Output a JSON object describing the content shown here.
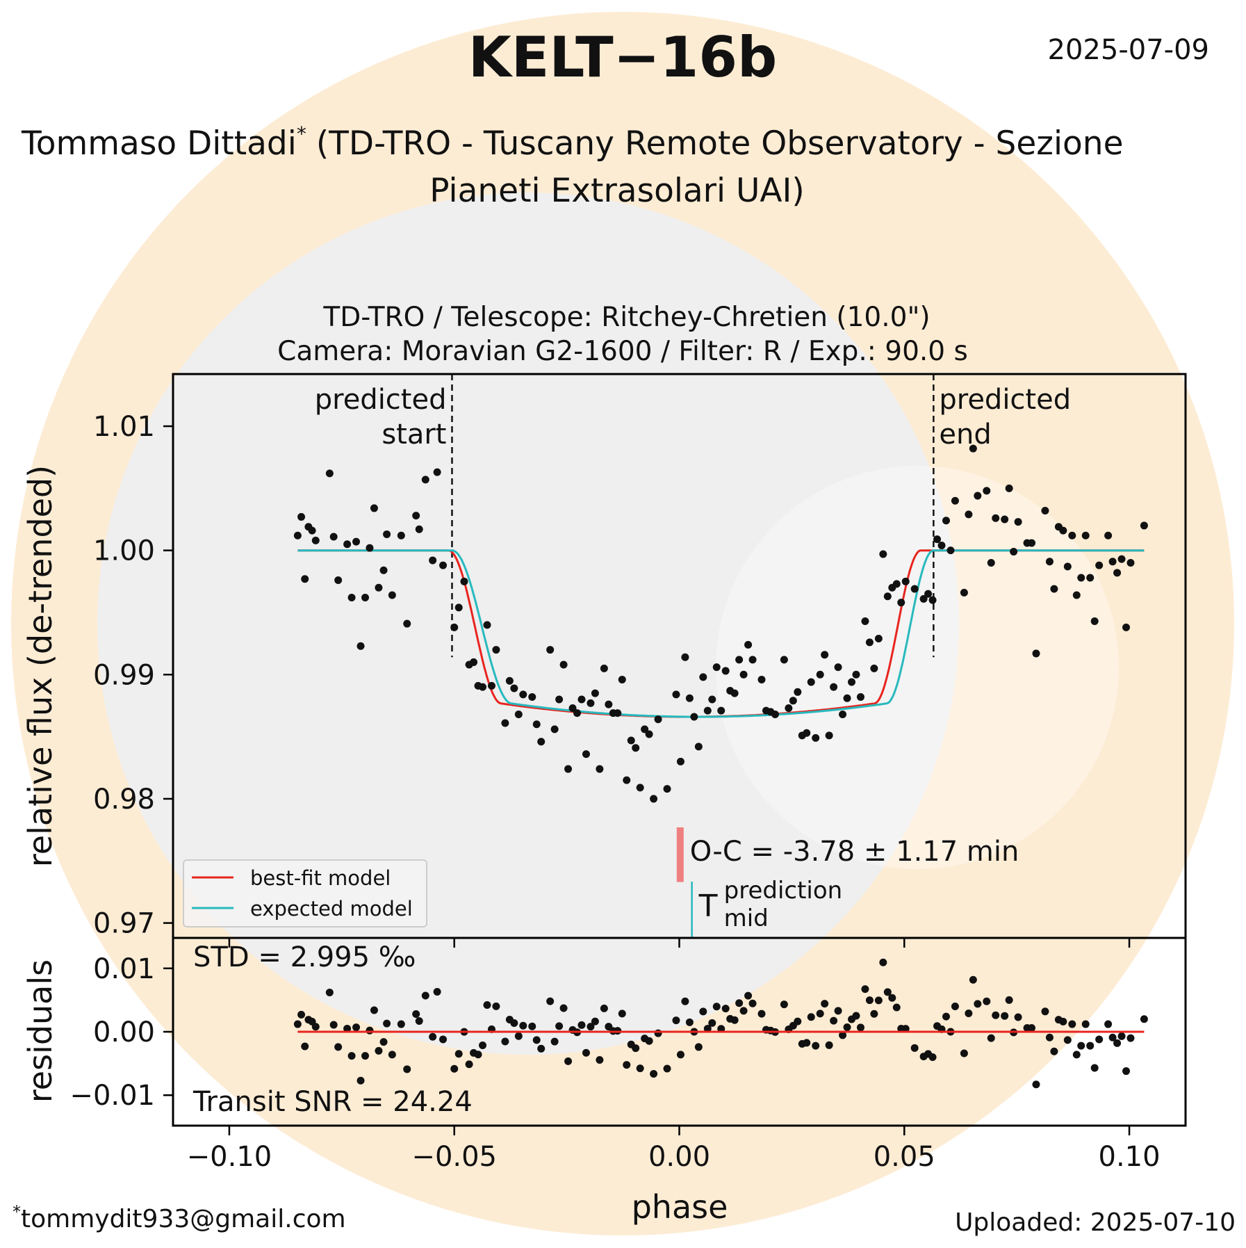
{
  "header": {
    "title": "KELT−16b",
    "date": "2025-07-09",
    "observer_line1": "Tommaso Dittadi",
    "observer_mark": "*",
    "observer_line1_rest": "(TD-TRO - Tuscany Remote Observatory - Sezione",
    "observer_line2": "Pianeti Extrasolari UAI)",
    "email_mark": "*",
    "email": "tommydit933@gmail.com",
    "uploaded": "Uploaded: 2025-07-10"
  },
  "chart_data": {
    "type": "scatter",
    "subtitle_line1": "TD-TRO / Telescope: Ritchey-Chretien (10.0\")",
    "subtitle_line2": "Camera: Moravian G2-1600 / Filter: R / Exp.: 90.0 s",
    "xlabel": "phase",
    "ylabel": "relative flux (de-trended)",
    "residuals_ylabel": "residuals",
    "xlim": [
      -0.1125,
      0.1125
    ],
    "ylim": [
      0.9688,
      1.0142
    ],
    "residuals_ylim": [
      -0.0148,
      0.0148
    ],
    "xticks": [
      -0.1,
      -0.05,
      0.0,
      0.05,
      0.1
    ],
    "xtick_labels": [
      "−0.10",
      "−0.05",
      "0.00",
      "0.05",
      "0.10"
    ],
    "yticks": [
      0.97,
      0.98,
      0.99,
      1.0,
      1.01
    ],
    "ytick_labels": [
      "0.97",
      "0.98",
      "0.99",
      "1.00",
      "1.01"
    ],
    "residuals_yticks": [
      -0.01,
      0.0,
      0.01
    ],
    "residuals_ytick_labels": [
      "−0.01",
      "0.00",
      "0.01"
    ],
    "predicted_start": {
      "x": -0.0505,
      "label_line1": "predicted",
      "label_line2": "start"
    },
    "predicted_end": {
      "x": 0.0565,
      "label_line1": "predicted",
      "label_line2": "end"
    },
    "oc_label": "O-C = -3.78 ± 1.17 min",
    "oc_bar": {
      "x": 0.0002,
      "y_range": [
        0.9733,
        0.9777
      ],
      "color": "#f08080"
    },
    "tmid_label": {
      "symbol": "T",
      "sup": "prediction",
      "sub": "mid"
    },
    "tmid_x": 0.0028,
    "std_label": "STD = 2.995 ‰",
    "snr_label": "Transit SNR = 24.24",
    "legend": {
      "placement": "lower-left",
      "entries": [
        {
          "name": "best-fit model",
          "color": "#e8251f"
        },
        {
          "name": "expected model",
          "color": "#27b9be"
        }
      ]
    },
    "model": {
      "baseline": 1.0,
      "depth": 0.0134,
      "best_fit": {
        "t1": -0.0513,
        "t2": -0.0395,
        "t3": 0.0433,
        "t4": 0.0537,
        "color": "#e8251f"
      },
      "expected": {
        "t1": -0.0505,
        "t2": -0.0372,
        "t3": 0.046,
        "t4": 0.0565,
        "color": "#27b9be"
      }
    },
    "colors": {
      "points": "#111111",
      "residual_line": "#e8251f",
      "watermark_orange": "#fdecd4",
      "watermark_gray": "#efefef"
    },
    "points": [
      [
        -0.0848,
        1.0012
      ],
      [
        -0.084,
        1.0027
      ],
      [
        -0.0832,
        0.9977
      ],
      [
        -0.0824,
        1.0019
      ],
      [
        -0.0816,
        1.0016
      ],
      [
        -0.0808,
        1.0008
      ],
      [
        -0.0777,
        1.0062
      ],
      [
        -0.0768,
        1.0011
      ],
      [
        -0.0758,
        0.9976
      ],
      [
        -0.0738,
        1.0005
      ],
      [
        -0.0728,
        0.9962
      ],
      [
        -0.0718,
        1.0007
      ],
      [
        -0.0708,
        0.9923
      ],
      [
        -0.0698,
        0.9962
      ],
      [
        -0.0688,
        1.0002
      ],
      [
        -0.0678,
        1.0034
      ],
      [
        -0.0668,
        0.997
      ],
      [
        -0.0657,
        0.9984
      ],
      [
        -0.065,
        1.0013
      ],
      [
        -0.0638,
        0.9964
      ],
      [
        -0.0618,
        1.0012
      ],
      [
        -0.0605,
        0.9941
      ],
      [
        -0.0585,
        1.0028
      ],
      [
        -0.0578,
        1.0017
      ],
      [
        -0.0564,
        1.0057
      ],
      [
        -0.0548,
        0.9992
      ],
      [
        -0.0538,
        1.0063
      ],
      [
        -0.0525,
        0.9988
      ],
      [
        -0.05,
        0.9938
      ],
      [
        -0.049,
        0.9954
      ],
      [
        -0.0478,
        0.9975
      ],
      [
        -0.0467,
        0.9908
      ],
      [
        -0.0457,
        0.991
      ],
      [
        -0.0447,
        0.9891
      ],
      [
        -0.0437,
        0.989
      ],
      [
        -0.0427,
        0.994
      ],
      [
        -0.0417,
        0.9891
      ],
      [
        -0.0407,
        0.992
      ],
      [
        -0.0387,
        0.9861
      ],
      [
        -0.0377,
        0.9895
      ],
      [
        -0.0367,
        0.9889
      ],
      [
        -0.0357,
        0.9868
      ],
      [
        -0.0347,
        0.9884
      ],
      [
        -0.0327,
        0.9882
      ],
      [
        -0.0317,
        0.986
      ],
      [
        -0.0307,
        0.9846
      ],
      [
        -0.0287,
        0.992
      ],
      [
        -0.0277,
        0.9856
      ],
      [
        -0.0267,
        0.988
      ],
      [
        -0.0257,
        0.9908
      ],
      [
        -0.0247,
        0.9824
      ],
      [
        -0.0237,
        0.9873
      ],
      [
        -0.0227,
        0.9869
      ],
      [
        -0.0217,
        0.988
      ],
      [
        -0.0207,
        0.9836
      ],
      [
        -0.0197,
        0.9877
      ],
      [
        -0.0187,
        0.9885
      ],
      [
        -0.0177,
        0.9824
      ],
      [
        -0.0167,
        0.9905
      ],
      [
        -0.0157,
        0.9876
      ],
      [
        -0.0147,
        0.9869
      ],
      [
        -0.0137,
        0.9869
      ],
      [
        -0.0127,
        0.9896
      ],
      [
        -0.0117,
        0.9815
      ],
      [
        -0.0107,
        0.9847
      ],
      [
        -0.0097,
        0.9841
      ],
      [
        -0.0087,
        0.9809
      ],
      [
        -0.0077,
        0.9856
      ],
      [
        -0.0067,
        0.9852
      ],
      [
        -0.0057,
        0.98
      ],
      [
        -0.0047,
        0.9864
      ],
      [
        -0.0027,
        0.9808
      ],
      [
        -0.0007,
        0.9884
      ],
      [
        0.0003,
        0.983
      ],
      [
        0.0013,
        0.9914
      ],
      [
        0.0023,
        0.9881
      ],
      [
        0.0033,
        0.9866
      ],
      [
        0.0043,
        0.9842
      ],
      [
        0.0053,
        0.9898
      ],
      [
        0.0063,
        0.9871
      ],
      [
        0.0073,
        0.988
      ],
      [
        0.0083,
        0.9906
      ],
      [
        0.0093,
        0.9871
      ],
      [
        0.0103,
        0.9903
      ],
      [
        0.0113,
        0.9887
      ],
      [
        0.0123,
        0.9885
      ],
      [
        0.0133,
        0.9912
      ],
      [
        0.0143,
        0.99
      ],
      [
        0.0153,
        0.9924
      ],
      [
        0.0163,
        0.9912
      ],
      [
        0.0183,
        0.9896
      ],
      [
        0.0193,
        0.9871
      ],
      [
        0.0203,
        0.987
      ],
      [
        0.0213,
        0.9868
      ],
      [
        0.0233,
        0.9912
      ],
      [
        0.0243,
        0.9873
      ],
      [
        0.0253,
        0.9879
      ],
      [
        0.0263,
        0.9886
      ],
      [
        0.0273,
        0.9851
      ],
      [
        0.0283,
        0.9853
      ],
      [
        0.0293,
        0.9894
      ],
      [
        0.0303,
        0.9849
      ],
      [
        0.0313,
        0.99
      ],
      [
        0.0323,
        0.9916
      ],
      [
        0.0333,
        0.9851
      ],
      [
        0.0343,
        0.989
      ],
      [
        0.0353,
        0.9906
      ],
      [
        0.0363,
        0.9868
      ],
      [
        0.0373,
        0.9881
      ],
      [
        0.0383,
        0.9894
      ],
      [
        0.0393,
        0.99
      ],
      [
        0.0403,
        0.9882
      ],
      [
        0.0413,
        0.9943
      ],
      [
        0.0423,
        0.9926
      ],
      [
        0.0433,
        0.9905
      ],
      [
        0.0443,
        0.9929
      ],
      [
        0.0453,
        0.9997
      ],
      [
        0.0463,
        0.9963
      ],
      [
        0.0473,
        0.997
      ],
      [
        0.0483,
        0.9973
      ],
      [
        0.0493,
        0.9958
      ],
      [
        0.0503,
        0.9975
      ],
      [
        0.0523,
        0.9969
      ],
      [
        0.0543,
        0.9961
      ],
      [
        0.0553,
        0.9965
      ],
      [
        0.0563,
        0.996
      ],
      [
        0.0573,
        1.0009
      ],
      [
        0.0583,
        1.0004
      ],
      [
        0.0593,
        1.0024
      ],
      [
        0.0603,
        1.0
      ],
      [
        0.0613,
        1.004
      ],
      [
        0.0633,
        0.9966
      ],
      [
        0.0643,
        1.0029
      ],
      [
        0.0653,
        1.0082
      ],
      [
        0.0663,
        1.0044
      ],
      [
        0.0683,
        1.0048
      ],
      [
        0.0693,
        0.999
      ],
      [
        0.0703,
        1.0026
      ],
      [
        0.0723,
        1.0025
      ],
      [
        0.0733,
        1.005
      ],
      [
        0.0743,
        0.9999
      ],
      [
        0.0753,
        1.0023
      ],
      [
        0.0773,
        1.0006
      ],
      [
        0.0783,
        1.0006
      ],
      [
        0.0793,
        0.9917
      ],
      [
        0.0813,
        1.0032
      ],
      [
        0.0823,
        0.9991
      ],
      [
        0.0833,
        0.9969
      ],
      [
        0.0843,
        1.0019
      ],
      [
        0.0853,
        1.0016
      ],
      [
        0.0863,
        0.9987
      ],
      [
        0.0873,
        1.0012
      ],
      [
        0.0883,
        0.9964
      ],
      [
        0.0893,
        0.9978
      ],
      [
        0.0903,
        1.0012
      ],
      [
        0.0913,
        0.9978
      ],
      [
        0.0923,
        0.9943
      ],
      [
        0.0933,
        0.9988
      ],
      [
        0.0953,
        1.0012
      ],
      [
        0.0963,
        0.9991
      ],
      [
        0.0973,
        0.9982
      ],
      [
        0.0983,
        0.9993
      ],
      [
        0.0993,
        0.9938
      ],
      [
        0.1003,
        0.999
      ],
      [
        0.1033,
        1.002
      ]
    ]
  }
}
